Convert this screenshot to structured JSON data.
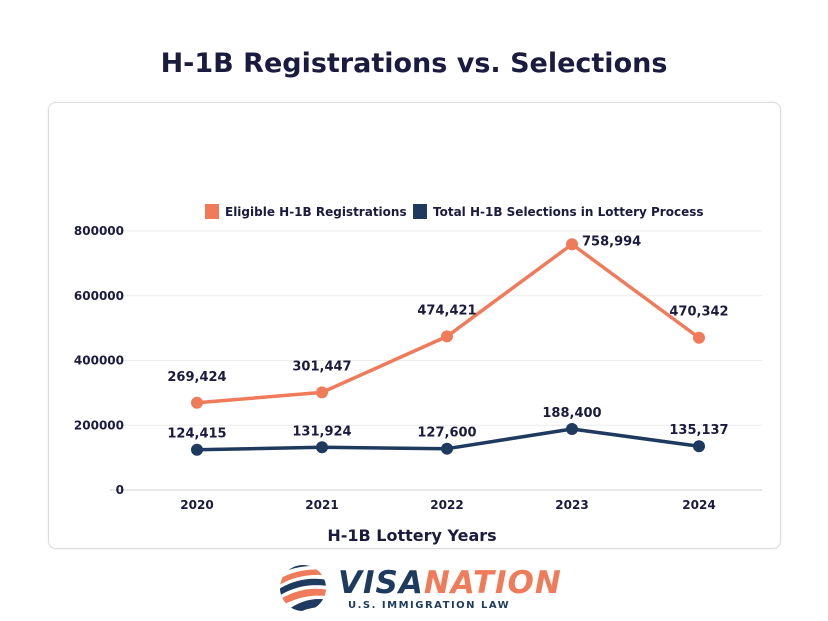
{
  "chart_data": {
    "type": "line",
    "title": "H-1B Registrations vs. Selections",
    "xlabel": "H-1B Lottery Years",
    "ylabel": "",
    "categories": [
      "2020",
      "2021",
      "2022",
      "2023",
      "2024"
    ],
    "ylim": [
      0,
      800000
    ],
    "yticks": [
      "0",
      "200000",
      "400000",
      "600000",
      "800000"
    ],
    "grid": true,
    "legend_position": "top",
    "series": [
      {
        "name": "Eligible H-1B Registrations",
        "color": "#f07b5a",
        "values": [
          269424,
          301447,
          474421,
          758994,
          470342
        ],
        "labels": [
          "269,424",
          "301,447",
          "474,421",
          "758,994",
          "470,342"
        ]
      },
      {
        "name": "Total H-1B Selections in Lottery Process",
        "color": "#1e3a5f",
        "values": [
          124415,
          131924,
          127600,
          188400,
          135137
        ],
        "labels": [
          "124,415",
          "131,924",
          "127,600",
          "188,400",
          "135,137"
        ]
      }
    ]
  },
  "logo": {
    "name_part1": "VISA",
    "name_part2": "NATION",
    "tagline": "U.S. IMMIGRATION LAW",
    "color1": "#1e3a5f",
    "color2": "#f07b5a"
  }
}
